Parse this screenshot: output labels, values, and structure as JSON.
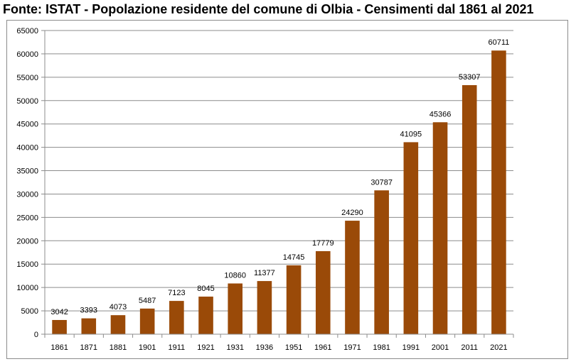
{
  "title": "Fonte: ISTAT - Popolazione residente del comune di Olbia - Censimenti dal 1861 al 2021",
  "colors": {
    "bar": "#9a4a08",
    "grid": "#8c8c8c",
    "axis": "#8c8c8c"
  },
  "chart_data": {
    "type": "bar",
    "title": "Fonte: ISTAT - Popolazione residente del comune di Olbia - Censimenti dal 1861 al 2021",
    "xlabel": "",
    "ylabel": "",
    "categories": [
      "1861",
      "1871",
      "1881",
      "1901",
      "1911",
      "1921",
      "1931",
      "1936",
      "1951",
      "1961",
      "1971",
      "1981",
      "1991",
      "2001",
      "2011",
      "2021"
    ],
    "values": [
      3042,
      3393,
      4073,
      5487,
      7123,
      8045,
      10860,
      11377,
      14745,
      17779,
      24290,
      30787,
      41095,
      45366,
      53307,
      60711
    ],
    "data_labels": [
      "3042",
      "3393",
      "4073",
      "5487",
      "7123",
      "8045",
      "10860",
      "11377",
      "14745",
      "17779",
      "24290",
      "30787",
      "41095",
      "45366",
      "53307",
      "60711"
    ],
    "ylim": [
      0,
      65000
    ],
    "yticks": [
      "0",
      "5000",
      "10000",
      "15000",
      "20000",
      "25000",
      "30000",
      "35000",
      "40000",
      "45000",
      "50000",
      "55000",
      "60000",
      "65000"
    ],
    "grid": true,
    "legend": "none"
  }
}
